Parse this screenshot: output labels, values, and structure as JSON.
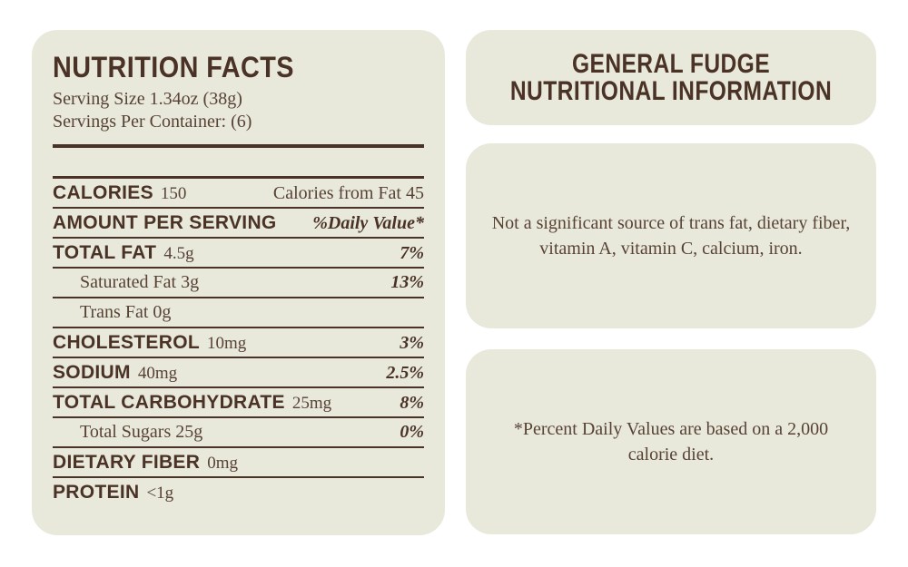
{
  "colors": {
    "page_background": "#ffffff",
    "panel_background": "#e8e9da",
    "dark_brown_text": "#4a3227",
    "serif_brown_text": "#584236"
  },
  "nutrition_label": {
    "title": "NUTRITION FACTS",
    "serving_size": "Serving Size 1.34oz (38g)",
    "servings_per_container": "Servings Per Container: (6)",
    "rows": [
      {
        "label": "CALORIES",
        "amount": "150",
        "value": "Calories from Fat 45"
      },
      {
        "label": "AMOUNT PER SERVING",
        "amount": "",
        "value": "%Daily Value*"
      },
      {
        "label": "TOTAL FAT",
        "amount": "4.5g",
        "value": "7%"
      },
      {
        "label": "Saturated Fat 3g",
        "amount": "",
        "value": "13%"
      },
      {
        "label": "Trans Fat 0g",
        "amount": "",
        "value": ""
      },
      {
        "label": "CHOLESTEROL",
        "amount": "10mg",
        "value": "3%"
      },
      {
        "label": "SODIUM",
        "amount": "40mg",
        "value": "2.5%"
      },
      {
        "label": "TOTAL CARBOHYDRATE",
        "amount": "25mg",
        "value": "8%"
      },
      {
        "label": "Total Sugars 25g",
        "amount": "",
        "value": "0%"
      },
      {
        "label": "DIETARY FIBER",
        "amount": "0mg",
        "value": ""
      },
      {
        "label": "PROTEIN",
        "amount": "<1g",
        "value": ""
      }
    ]
  },
  "info_panels": {
    "heading_line1": "GENERAL FUDGE",
    "heading_line2": "NUTRITIONAL INFORMATION",
    "not_significant_line1": "Not a significant source of trans fat, dietary fiber,",
    "not_significant_line2": "vitamin A, vitamin C, calcium, iron.",
    "daily_value_line1": "*Percent Daily Values are based on a 2,000",
    "daily_value_line2": "calorie diet."
  }
}
